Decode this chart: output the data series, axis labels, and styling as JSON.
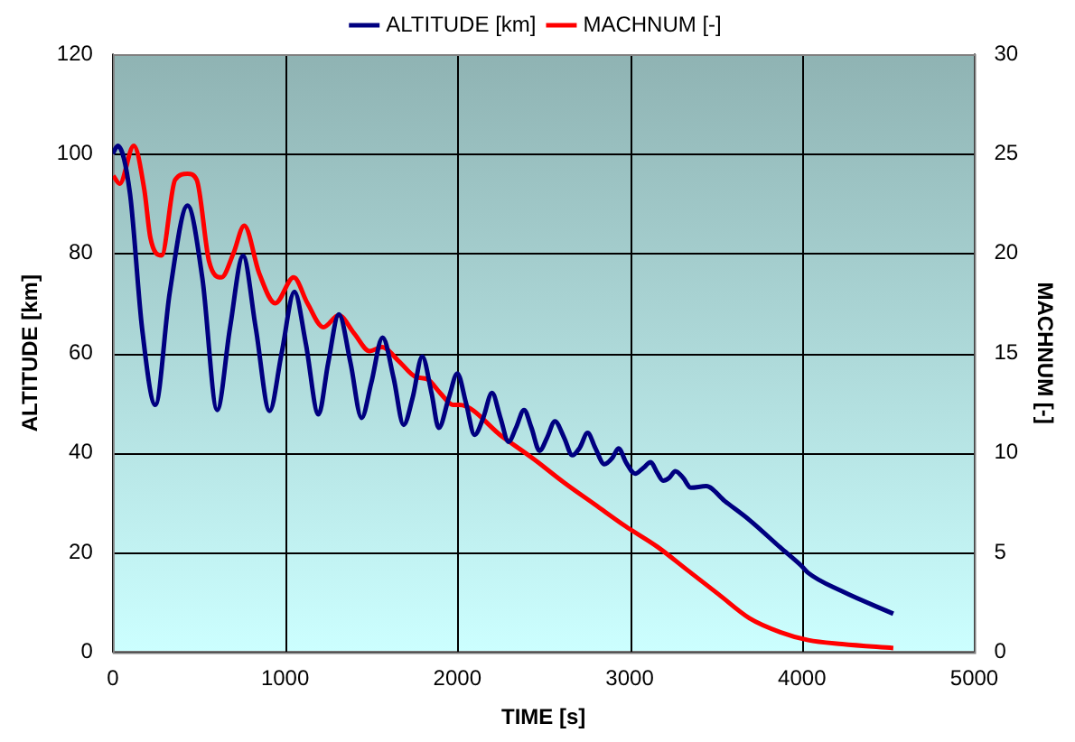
{
  "chart_data": {
    "type": "line",
    "xlabel": "TIME [s]",
    "ylabel": "ALTITUDE [km]",
    "y2label": "MACHNUM [-]",
    "xlim": [
      0,
      5000
    ],
    "xticks": [
      0,
      1000,
      2000,
      3000,
      4000,
      5000
    ],
    "ylim": [
      0,
      120
    ],
    "yticks": [
      0,
      20,
      40,
      60,
      80,
      100,
      120
    ],
    "y2lim": [
      0,
      30
    ],
    "y2ticks": [
      0,
      5,
      10,
      15,
      20,
      25,
      30
    ],
    "grid": true,
    "legend": "top",
    "marker": "none",
    "line_style": "solid",
    "series": [
      {
        "name": "ALTITUDE [km]",
        "color": "#000080",
        "x": [
          0,
          29,
          100,
          170,
          247,
          330,
          434,
          520,
          606,
          680,
          756,
          830,
          910,
          980,
          1054,
          1120,
          1194,
          1250,
          1312,
          1380,
          1444,
          1500,
          1566,
          1630,
          1688,
          1740,
          1796,
          1850,
          1892,
          1950,
          2000,
          2050,
          2100,
          2150,
          2201,
          2250,
          2297,
          2340,
          2387,
          2430,
          2477,
          2520,
          2566,
          2620,
          2667,
          2710,
          2756,
          2800,
          2853,
          2900,
          2935,
          2980,
          3032,
          3080,
          3122,
          3160,
          3194,
          3230,
          3265,
          3310,
          3355,
          3444,
          3552,
          3695,
          3874,
          4000,
          4036,
          4233,
          4530
        ],
        "values": [
          100,
          101.6,
          92,
          65,
          49.6,
          72,
          89.6,
          75,
          48.6,
          65,
          79.5,
          65,
          48.4,
          60,
          72.3,
          62,
          47.7,
          58,
          67.8,
          58,
          47,
          54,
          63.1,
          55,
          45.6,
          51,
          59.3,
          52,
          45,
          51,
          55.9,
          50,
          43.6,
          47,
          52,
          47,
          42.2,
          45,
          48.6,
          45,
          40.4,
          43,
          46.3,
          43,
          39.5,
          41,
          44,
          41,
          37.7,
          39,
          40.9,
          38,
          35.8,
          37,
          38.1,
          36,
          34.4,
          35,
          36.3,
          35,
          33,
          33.3,
          30.3,
          26.5,
          21,
          17.2,
          15.9,
          12.2,
          7.7
        ]
      },
      {
        "name": "MACHNUM [-]",
        "color": "#ff0000",
        "axis": "y2",
        "x": [
          3,
          40,
          122,
          183,
          218,
          283,
          362,
          434,
          487,
          559,
          631,
          700,
          763,
          850,
          943,
          1050,
          1130,
          1222,
          1312,
          1400,
          1491,
          1563,
          1660,
          1760,
          1824,
          1900,
          1975,
          2011,
          2262,
          2441,
          2620,
          2799,
          2978,
          3158,
          3337,
          3516,
          3695,
          3874,
          4036,
          4233,
          4530
        ],
        "values": [
          23.9,
          23.5,
          25.4,
          23.2,
          20.8,
          19.9,
          23.7,
          24,
          23.7,
          19.6,
          18.8,
          20,
          21.4,
          19,
          17.5,
          18.8,
          17.5,
          16.3,
          16.9,
          16,
          15.1,
          15.3,
          14.6,
          13.8,
          13.7,
          13,
          12.4,
          12.4,
          10.8,
          9.7,
          8.5,
          7.4,
          6.3,
          5.3,
          4.1,
          2.9,
          1.7,
          1,
          0.6,
          0.4,
          0.2
        ]
      }
    ]
  }
}
